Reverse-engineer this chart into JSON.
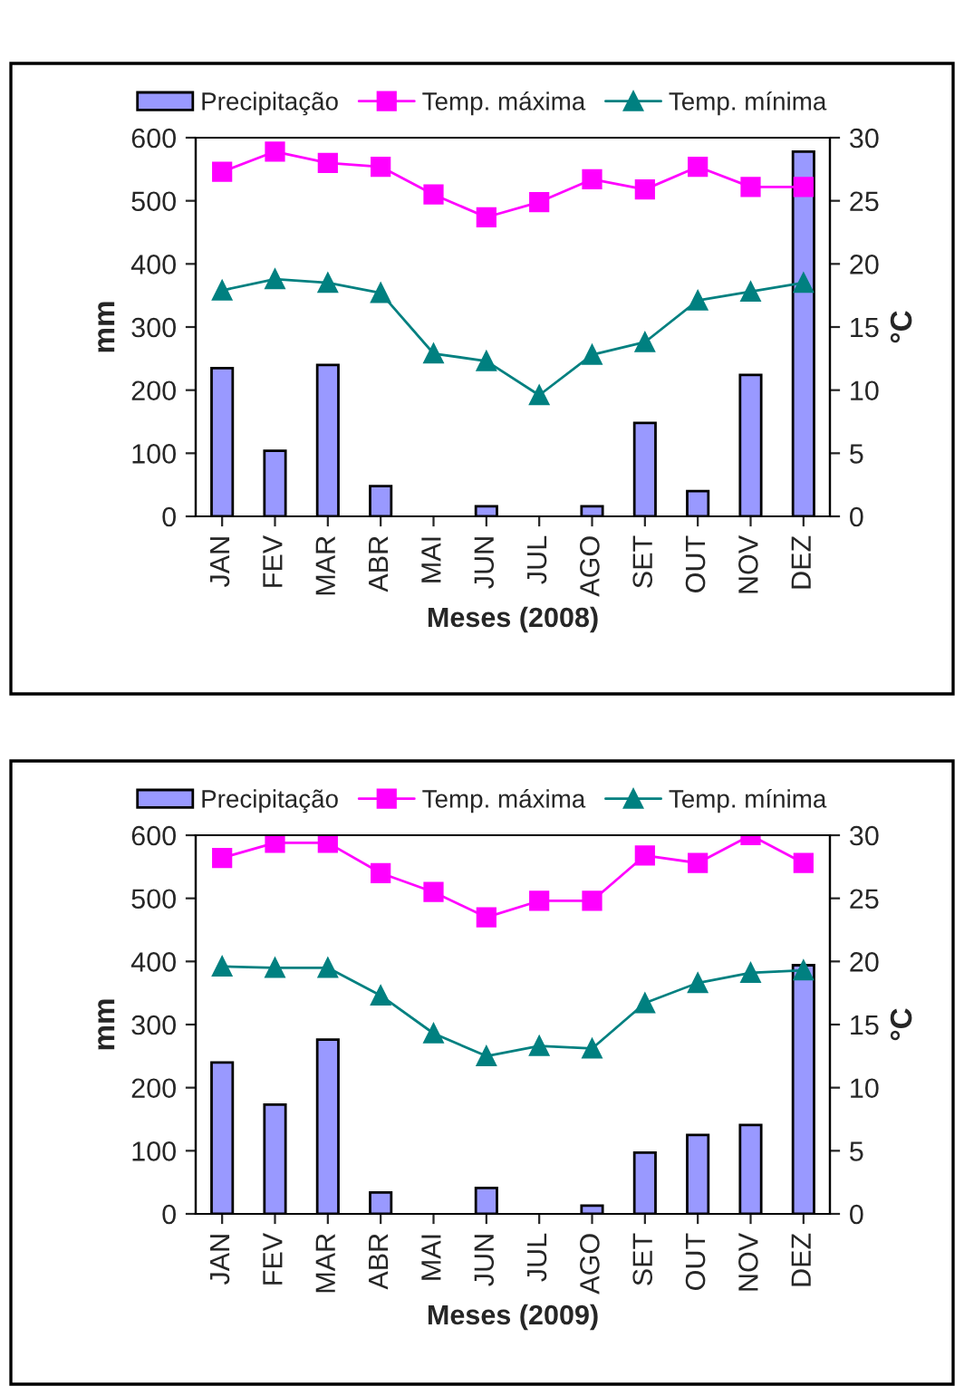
{
  "chart_data": [
    {
      "type": "bar",
      "categories": [
        "JAN",
        "FEV",
        "MAR",
        "ABR",
        "MAI",
        "JUN",
        "JUL",
        "AGO",
        "SET",
        "OUT",
        "NOV",
        "DEZ"
      ],
      "xlabel": "Meses (2008)",
      "ylabel": "mm",
      "y2label": "°C",
      "ylim": [
        0,
        600
      ],
      "yticks": [
        0,
        100,
        200,
        300,
        400,
        500,
        600
      ],
      "y2lim": [
        0,
        30
      ],
      "y2ticks": [
        0,
        5,
        10,
        15,
        20,
        25,
        30
      ],
      "legend": "top",
      "grid": false,
      "series": [
        {
          "name": "Precipitação",
          "color": "#9999ff",
          "values": [
            235,
            104,
            240,
            48,
            null,
            16,
            null,
            16,
            148,
            40,
            224,
            578
          ]
        },
        {
          "name": "Temp. máxima",
          "type": "line",
          "axis": "y2",
          "marker": "square",
          "color": "#ff00ff",
          "values": [
            27.3,
            28.9,
            28.0,
            27.7,
            25.5,
            23.7,
            24.9,
            26.7,
            25.9,
            27.7,
            26.1,
            26.1
          ]
        },
        {
          "name": "Temp. mínima",
          "type": "line",
          "axis": "y2",
          "marker": "triangle",
          "color": "#008080",
          "values": [
            17.9,
            18.8,
            18.5,
            17.7,
            12.9,
            12.3,
            9.6,
            12.8,
            13.8,
            17.1,
            17.8,
            18.5
          ]
        }
      ]
    },
    {
      "type": "bar",
      "categories": [
        "JAN",
        "FEV",
        "MAR",
        "ABR",
        "MAI",
        "JUN",
        "JUL",
        "AGO",
        "SET",
        "OUT",
        "NOV",
        "DEZ"
      ],
      "xlabel": "Meses (2009)",
      "ylabel": "mm",
      "y2label": "°C",
      "ylim": [
        0,
        600
      ],
      "yticks": [
        0,
        100,
        200,
        300,
        400,
        500,
        600
      ],
      "y2lim": [
        0,
        30
      ],
      "y2ticks": [
        0,
        5,
        10,
        15,
        20,
        25,
        30
      ],
      "legend": "top",
      "grid": false,
      "series": [
        {
          "name": "Precipitação",
          "color": "#9999ff",
          "values": [
            240,
            173,
            276,
            34,
            null,
            41,
            null,
            13,
            97,
            125,
            141,
            394
          ]
        },
        {
          "name": "Temp. máxima",
          "type": "line",
          "axis": "y2",
          "marker": "square",
          "color": "#ff00ff",
          "values": [
            28.2,
            29.4,
            29.4,
            27.0,
            25.5,
            23.5,
            24.8,
            24.8,
            28.4,
            27.8,
            30.0,
            27.8
          ]
        },
        {
          "name": "Temp. mínima",
          "type": "line",
          "axis": "y2",
          "marker": "triangle",
          "color": "#008080",
          "values": [
            19.6,
            19.5,
            19.5,
            17.3,
            14.3,
            12.5,
            13.3,
            13.1,
            16.7,
            18.3,
            19.1,
            19.3
          ]
        }
      ]
    }
  ]
}
